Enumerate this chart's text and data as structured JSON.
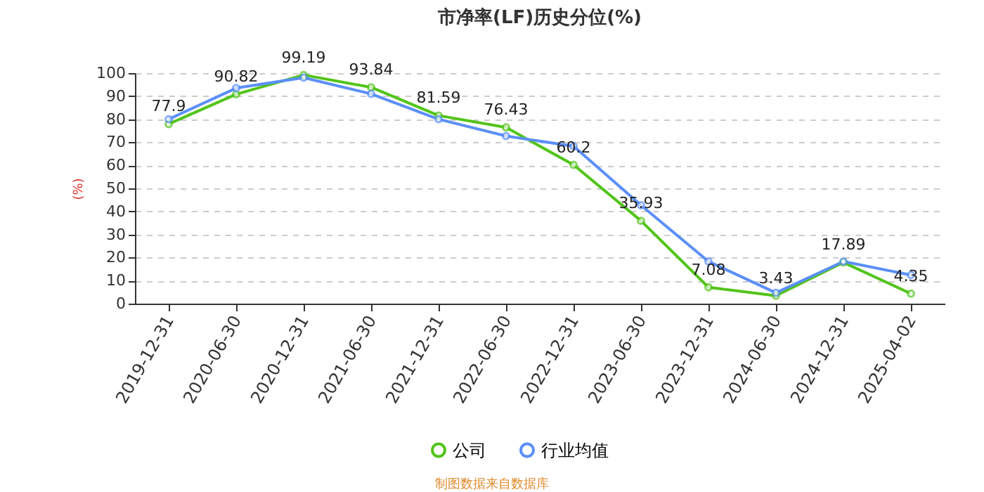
{
  "chart_data": {
    "type": "line",
    "title": "市净率(LF)历史分位(%)",
    "ylabel": "(%)",
    "categories": [
      "2019-12-31",
      "2020-06-30",
      "2020-12-31",
      "2021-06-30",
      "2021-12-31",
      "2022-06-30",
      "2022-12-31",
      "2023-06-30",
      "2023-12-31",
      "2024-06-30",
      "2024-12-31",
      "2025-04-02"
    ],
    "series": [
      {
        "name": "公司",
        "color": "#52c41a",
        "values": [
          77.9,
          90.82,
          99.19,
          93.84,
          81.59,
          76.43,
          60.2,
          35.93,
          7.08,
          3.43,
          17.89,
          4.35
        ],
        "value_labels": [
          "77.9",
          "90.82",
          "99.19",
          "93.84",
          "81.59",
          "76.43",
          "60.2",
          "35.93",
          "7.08",
          "3.43",
          "17.89",
          "4.35"
        ]
      },
      {
        "name": "行业均值",
        "color": "#5b8ff9",
        "values": [
          80,
          93.5,
          98,
          91,
          80,
          72.7,
          68.3,
          42.7,
          18.3,
          4.7,
          18.3,
          12.4
        ]
      }
    ],
    "ylim": [
      0,
      100
    ],
    "yticks": [
      0,
      10,
      20,
      30,
      40,
      50,
      60,
      70,
      80,
      90,
      100
    ],
    "grid": "y",
    "legend": "bottom",
    "marker": "circle",
    "line_style": "solid",
    "annotations": [
      "制图数据来自数据库"
    ]
  }
}
